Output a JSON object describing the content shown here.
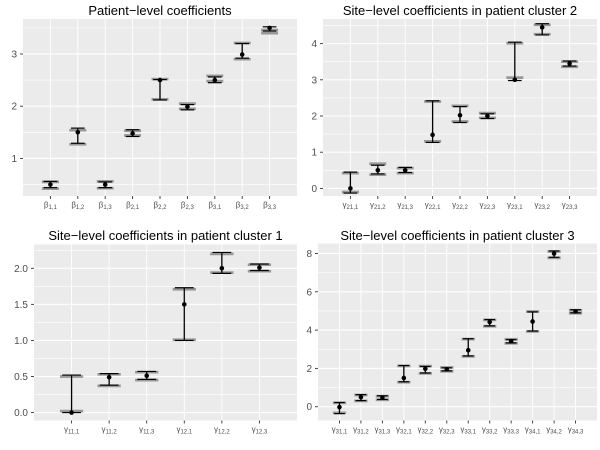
{
  "colors": {
    "panel_background": "#EBEBEB",
    "grid": "#FFFFFF",
    "axis_text": "#4D4D4D",
    "tick_mark": "#333333",
    "estimate_black": "#000000",
    "reference_band_gray": "#878787"
  },
  "chart_data": [
    {
      "type": "scatter",
      "title": "Patient−level coefficients",
      "xlabel": "",
      "ylabel": "",
      "ylim": [
        0.28,
        3.67
      ],
      "yticks": [
        1,
        2,
        3
      ],
      "ytick_labels": [
        "1",
        "2",
        "3"
      ],
      "grid": "horizontal major+minor, vertical at categories",
      "legend": "none",
      "categories": [
        {
          "base": "β",
          "sub": "1,1"
        },
        {
          "base": "β",
          "sub": "1,2"
        },
        {
          "base": "β",
          "sub": "1,3"
        },
        {
          "base": "β",
          "sub": "2,1"
        },
        {
          "base": "β",
          "sub": "2,2"
        },
        {
          "base": "β",
          "sub": "2,3"
        },
        {
          "base": "β",
          "sub": "3,1"
        },
        {
          "base": "β",
          "sub": "3,2"
        },
        {
          "base": "β",
          "sub": "3,3"
        }
      ],
      "series": [
        {
          "name": "posterior estimate with credible interval (black point and errorbar)",
          "estimates": [
            0.5,
            1.5,
            0.5,
            1.48,
            2.5,
            1.99,
            2.5,
            2.99,
            3.5
          ],
          "lower": [
            0.44,
            1.29,
            0.44,
            1.42,
            2.12,
            1.93,
            2.45,
            2.92,
            3.44
          ],
          "upper": [
            0.56,
            1.58,
            0.55,
            1.55,
            2.51,
            2.03,
            2.56,
            3.2,
            3.52
          ]
        },
        {
          "name": "reference interval (thick gray band)",
          "lower": [
            0.42,
            1.27,
            0.43,
            1.44,
            2.13,
            1.95,
            2.48,
            2.9,
            3.4
          ],
          "upper": [
            0.55,
            1.54,
            0.56,
            1.53,
            2.52,
            2.05,
            2.58,
            3.21,
            3.46
          ]
        }
      ]
    },
    {
      "type": "scatter",
      "title": "Site−level coefficients in patient cluster 2",
      "xlabel": "",
      "ylabel": "",
      "ylim": [
        -0.21,
        4.68
      ],
      "yticks": [
        0,
        1,
        2,
        3,
        4
      ],
      "ytick_labels": [
        "0",
        "1",
        "2",
        "3",
        "4"
      ],
      "grid": "horizontal major+minor, vertical at categories",
      "legend": "none",
      "categories": [
        {
          "base": "γ",
          "sub": "21,1"
        },
        {
          "base": "γ",
          "sub": "21,2"
        },
        {
          "base": "γ",
          "sub": "21,3"
        },
        {
          "base": "γ",
          "sub": "22,1"
        },
        {
          "base": "γ",
          "sub": "22,2"
        },
        {
          "base": "γ",
          "sub": "22,3"
        },
        {
          "base": "γ",
          "sub": "23,1"
        },
        {
          "base": "γ",
          "sub": "23,2"
        },
        {
          "base": "γ",
          "sub": "23,3"
        }
      ],
      "series": [
        {
          "name": "posterior estimate with credible interval (black point and errorbar)",
          "estimates": [
            0.0,
            0.5,
            0.5,
            1.48,
            2.02,
            2.0,
            3.0,
            4.45,
            3.45
          ],
          "lower": [
            -0.13,
            0.4,
            0.44,
            1.27,
            1.82,
            1.93,
            2.98,
            4.24,
            3.38
          ],
          "upper": [
            0.45,
            0.64,
            0.58,
            2.42,
            2.26,
            2.06,
            4.04,
            4.55,
            3.52
          ]
        },
        {
          "name": "reference interval (thick gray band)",
          "lower": [
            -0.1,
            0.38,
            0.42,
            1.3,
            1.85,
            1.95,
            3.06,
            4.26,
            3.36
          ],
          "upper": [
            0.42,
            0.68,
            0.56,
            2.4,
            2.28,
            2.08,
            4.01,
            4.52,
            3.5
          ]
        }
      ]
    },
    {
      "type": "scatter",
      "title": "Site−level coefficients in patient cluster 1",
      "xlabel": "",
      "ylabel": "",
      "ylim": [
        -0.11,
        2.33
      ],
      "yticks": [
        0,
        0.5,
        1,
        1.5,
        2
      ],
      "ytick_labels": [
        "0.0",
        "0.5",
        "1.0",
        "1.5",
        "2.0"
      ],
      "grid": "horizontal major+minor, vertical at categories",
      "legend": "none",
      "categories": [
        {
          "base": "γ",
          "sub": "11,1"
        },
        {
          "base": "γ",
          "sub": "11,2"
        },
        {
          "base": "γ",
          "sub": "11,3"
        },
        {
          "base": "γ",
          "sub": "12,1"
        },
        {
          "base": "γ",
          "sub": "12,2"
        },
        {
          "base": "γ",
          "sub": "12,3"
        }
      ],
      "series": [
        {
          "name": "posterior estimate with credible interval (black point and errorbar)",
          "estimates": [
            0.0,
            0.49,
            0.51,
            1.5,
            2.0,
            2.01
          ],
          "lower": [
            0.0,
            0.38,
            0.46,
            1.0,
            1.93,
            1.97
          ],
          "upper": [
            0.52,
            0.54,
            0.57,
            1.73,
            2.22,
            2.06
          ]
        },
        {
          "name": "reference interval (thick gray band)",
          "lower": [
            0.02,
            0.37,
            0.45,
            1.01,
            1.94,
            1.96
          ],
          "upper": [
            0.5,
            0.53,
            0.56,
            1.71,
            2.2,
            2.05
          ]
        }
      ]
    },
    {
      "type": "scatter",
      "title": "Site−level coefficients in patient cluster 3",
      "xlabel": "",
      "ylabel": "",
      "ylim": [
        -0.72,
        8.52
      ],
      "yticks": [
        0,
        2,
        4,
        6,
        8
      ],
      "ytick_labels": [
        "0",
        "2",
        "4",
        "6",
        "8"
      ],
      "grid": "horizontal major+minor, vertical at categories",
      "legend": "none",
      "categories": [
        {
          "base": "γ",
          "sub": "31,1"
        },
        {
          "base": "γ",
          "sub": "31,2"
        },
        {
          "base": "γ",
          "sub": "31,3"
        },
        {
          "base": "γ",
          "sub": "32,1"
        },
        {
          "base": "γ",
          "sub": "32,2"
        },
        {
          "base": "γ",
          "sub": "32,3"
        },
        {
          "base": "γ",
          "sub": "33,1"
        },
        {
          "base": "γ",
          "sub": "33,2"
        },
        {
          "base": "γ",
          "sub": "33,3"
        },
        {
          "base": "γ",
          "sub": "34,1"
        },
        {
          "base": "γ",
          "sub": "34,2"
        },
        {
          "base": "γ",
          "sub": "34,3"
        }
      ],
      "series": [
        {
          "name": "posterior estimate with credible interval (black point and errorbar)",
          "estimates": [
            -0.02,
            0.5,
            0.48,
            1.5,
            1.98,
            1.95,
            2.95,
            4.42,
            3.42,
            4.45,
            8.0,
            4.97
          ],
          "lower": [
            -0.36,
            0.32,
            0.38,
            1.3,
            1.76,
            1.87,
            2.65,
            4.22,
            3.33,
            3.95,
            7.8,
            4.9
          ],
          "upper": [
            0.22,
            0.63,
            0.57,
            2.15,
            2.1,
            2.03,
            3.55,
            4.55,
            3.5,
            4.95,
            8.13,
            5.06
          ]
        },
        {
          "name": "reference interval (thick gray band)",
          "lower": [
            -0.32,
            0.3,
            0.36,
            1.28,
            1.74,
            1.85,
            2.63,
            4.2,
            3.31,
            3.93,
            7.77,
            4.88
          ],
          "upper": [
            0.2,
            0.61,
            0.55,
            2.13,
            2.12,
            2.05,
            3.53,
            4.53,
            3.52,
            4.97,
            8.1,
            5.04
          ]
        }
      ]
    }
  ]
}
